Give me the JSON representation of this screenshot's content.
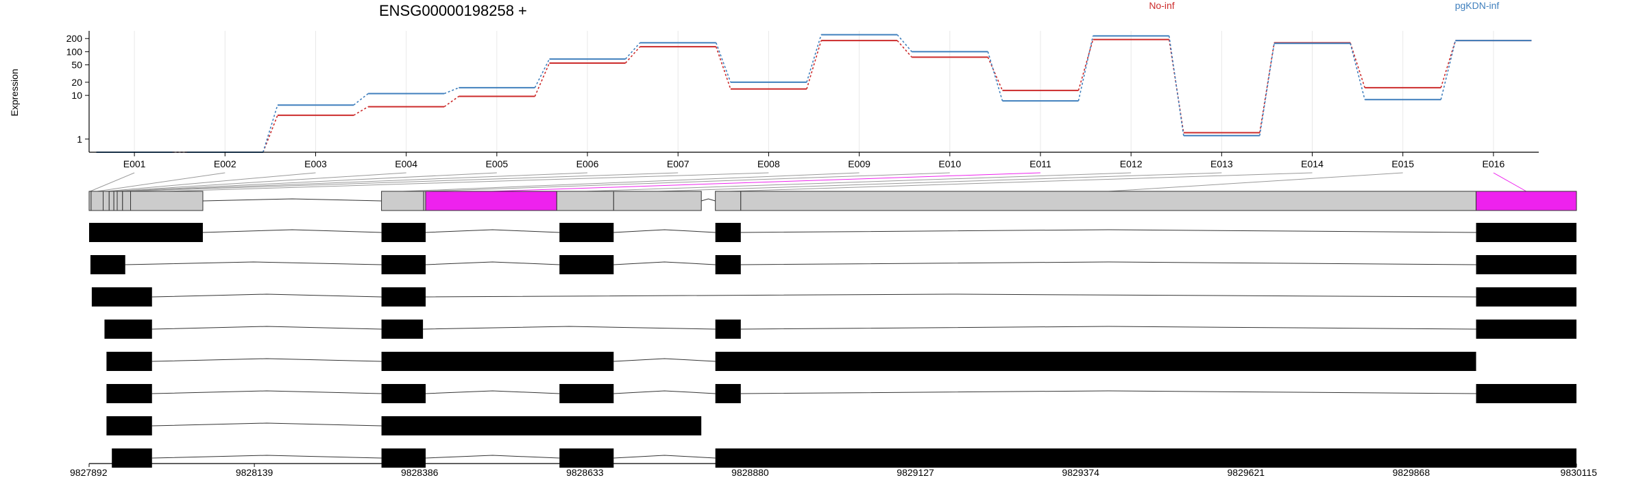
{
  "title": "ENSG00000198258 +",
  "ylabel": "Expression",
  "colors": {
    "no_inf": "#cc2a2a",
    "pgkdn_inf": "#3f7fbd",
    "highlight": "#ee22ee",
    "gray": "#cccccc"
  },
  "chart_data": [
    {
      "type": "line",
      "title": "ENSG00000198258 +",
      "ylabel": "Expression",
      "yscale": "log",
      "ylim": [
        0.5,
        300
      ],
      "yticks": [
        1,
        10,
        20,
        50,
        100,
        200
      ],
      "legend_placement": "top",
      "categories": [
        "E001",
        "E002",
        "E003",
        "E004",
        "E005",
        "E006",
        "E007",
        "E008",
        "E009",
        "E010",
        "E011",
        "E012",
        "E013",
        "E014",
        "E015",
        "E016"
      ],
      "series": [
        {
          "name": "No-inf",
          "color": "#cc2a2a",
          "values": [
            0.5,
            0.5,
            3.5,
            5.5,
            9.5,
            55,
            130,
            14,
            180,
            75,
            13,
            190,
            1.4,
            160,
            15,
            180
          ]
        },
        {
          "name": "pgKDN-inf",
          "color": "#3f7fbd",
          "values": [
            0.5,
            0.5,
            6,
            11,
            15,
            68,
            160,
            20,
            245,
            100,
            7.5,
            230,
            1.2,
            155,
            8,
            180
          ]
        }
      ]
    },
    {
      "type": "gene_model",
      "xlim": [
        9827892,
        9830115
      ],
      "xticks": [
        9827892,
        9828139,
        9828386,
        9828633,
        9828880,
        9829127,
        9829374,
        9829621,
        9829868,
        9830115
      ],
      "exon_bins": [
        {
          "name": "E001",
          "start": 9827892,
          "end": 9827895,
          "highlight": false
        },
        {
          "name": "E002",
          "start": 9827895,
          "end": 9827913,
          "highlight": false
        },
        {
          "name": "E003",
          "start": 9827913,
          "end": 9827922,
          "highlight": false
        },
        {
          "name": "E004",
          "start": 9827922,
          "end": 9827929,
          "highlight": false
        },
        {
          "name": "E005",
          "start": 9827929,
          "end": 9827934,
          "highlight": false
        },
        {
          "name": "E006",
          "start": 9827934,
          "end": 9827942,
          "highlight": false
        },
        {
          "name": "E007",
          "start": 9827942,
          "end": 9827954,
          "highlight": false
        },
        {
          "name": "E008",
          "start": 9827954,
          "end": 9828062,
          "highlight": false
        },
        {
          "name": "E009",
          "start": 9828329,
          "end": 9828392,
          "highlight": false
        },
        {
          "name": "E010",
          "start": 9828392,
          "end": 9828395,
          "highlight": false
        },
        {
          "name": "E011",
          "start": 9828395,
          "end": 9828591,
          "highlight": true
        },
        {
          "name": "E012",
          "start": 9828591,
          "end": 9828676,
          "highlight": false
        },
        {
          "name": "E013",
          "start": 9828676,
          "end": 9828807,
          "highlight": false
        },
        {
          "name": "E014",
          "start": 9828828,
          "end": 9828866,
          "highlight": false
        },
        {
          "name": "E015",
          "start": 9828866,
          "end": 9829965,
          "highlight": false
        },
        {
          "name": "E016",
          "start": 9829965,
          "end": 9830115,
          "highlight": true
        }
      ],
      "transcripts": [
        [
          [
            9827892,
            9828062
          ],
          [
            9828329,
            9828395
          ],
          [
            9828595,
            9828676
          ],
          [
            9828828,
            9828866
          ],
          [
            9829965,
            9830115
          ]
        ],
        [
          [
            9827894,
            9827946
          ],
          [
            9828329,
            9828395
          ],
          [
            9828595,
            9828676
          ],
          [
            9828828,
            9828866
          ],
          [
            9829965,
            9830115
          ]
        ],
        [
          [
            9827896,
            9827986
          ],
          [
            9828329,
            9828395
          ],
          [
            9829965,
            9830115
          ]
        ],
        [
          [
            9827915,
            9827986
          ],
          [
            9828329,
            9828391
          ],
          [
            9828828,
            9828866
          ],
          [
            9829965,
            9830115
          ]
        ],
        [
          [
            9827918,
            9827986
          ],
          [
            9828329,
            9828676
          ],
          [
            9828828,
            9829965
          ]
        ],
        [
          [
            9827918,
            9827986
          ],
          [
            9828329,
            9828395
          ],
          [
            9828595,
            9828676
          ],
          [
            9828828,
            9828866
          ],
          [
            9829965,
            9830115
          ]
        ],
        [
          [
            9827918,
            9827986
          ],
          [
            9828329,
            9828807
          ]
        ],
        [
          [
            9827926,
            9827986
          ],
          [
            9828329,
            9828395
          ],
          [
            9828595,
            9828676
          ],
          [
            9828828,
            9830115
          ]
        ]
      ]
    }
  ]
}
